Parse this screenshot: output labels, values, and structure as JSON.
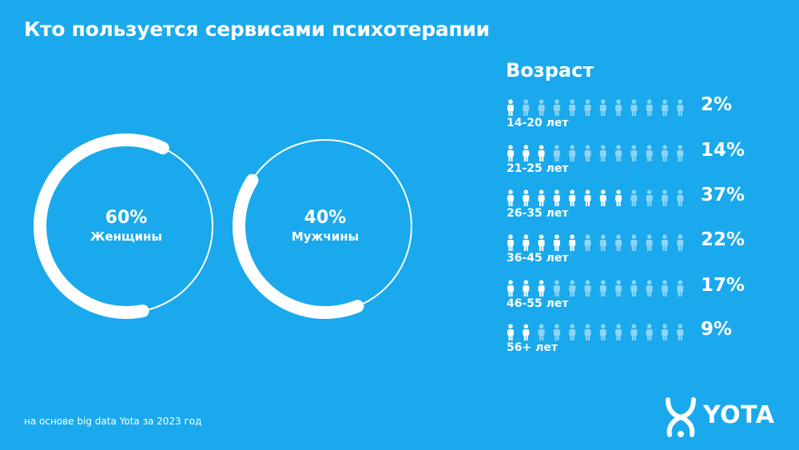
{
  "title": "Кто пользуется сервисами психотерапии",
  "chart_data": [
    {
      "type": "pie",
      "categories": [
        "Женщины",
        "Мужчины"
      ],
      "values": [
        60,
        40
      ],
      "labels": [
        "60%",
        "40%"
      ]
    },
    {
      "type": "bar",
      "title": "Возраст",
      "categories": [
        "14-20 лет",
        "21-25 лет",
        "26-35 лет",
        "36-45 лет",
        "46-55 лет",
        "56+ лет"
      ],
      "values": [
        2,
        14,
        37,
        22,
        17,
        9
      ],
      "labels": [
        "2%",
        "14%",
        "37%",
        "22%",
        "17%",
        "9%"
      ],
      "icons_total": 12,
      "icons_filled": [
        1,
        3,
        8,
        5,
        3,
        2
      ]
    }
  ],
  "donuts": [
    {
      "pct": "60%",
      "name": "Женщины"
    },
    {
      "pct": "40%",
      "name": "Мужчины"
    }
  ],
  "age": {
    "title": "Возраст",
    "rows": [
      {
        "label": "14-20 лет",
        "pct": "2%"
      },
      {
        "label": "21-25 лет",
        "pct": "14%"
      },
      {
        "label": "26-35 лет",
        "pct": "37%"
      },
      {
        "label": "36-45 лет",
        "pct": "22%"
      },
      {
        "label": "46-55 лет",
        "pct": "17%"
      },
      {
        "label": "56+ лет",
        "pct": "9%"
      }
    ]
  },
  "source": "на основе big data Yota за 2023 год",
  "logo": {
    "text": "YOTA",
    "icon": "yota-logo-icon"
  },
  "colors": {
    "background": "#1aa9ec",
    "foreground": "#ffffff",
    "icon_dim": "#8fd4f5"
  }
}
